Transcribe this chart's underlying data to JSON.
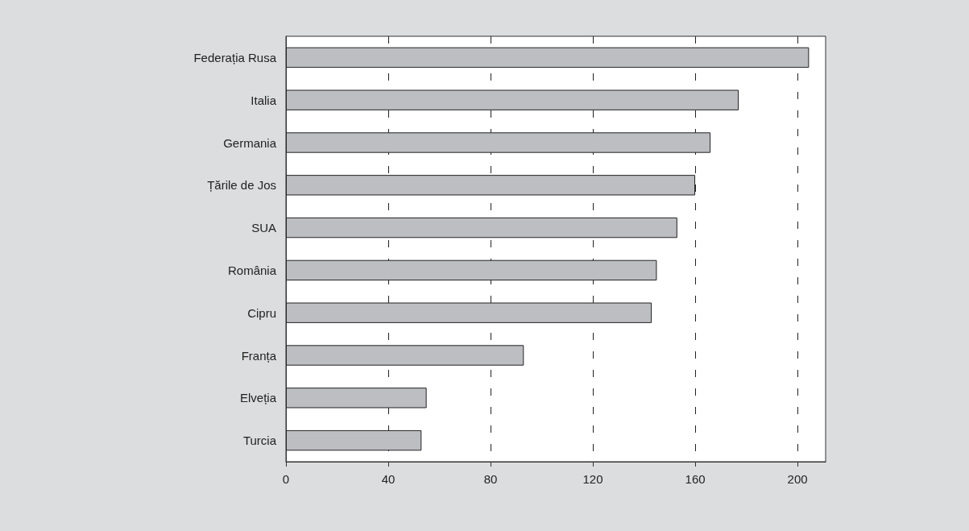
{
  "chart_data": {
    "type": "bar",
    "orientation": "horizontal",
    "categories": [
      "Federația Rusa",
      "Italia",
      "Germania",
      "Țările de Jos",
      "SUA",
      "România",
      "Cipru",
      "Franța",
      "Elveția",
      "Turcia"
    ],
    "values": [
      204.5,
      177,
      166,
      160,
      153,
      145,
      143,
      93,
      55,
      53
    ],
    "color": "#bdbec2",
    "xlim": [
      0,
      211
    ],
    "xticks": [
      0,
      40,
      80,
      120,
      160,
      200
    ],
    "grid": "x"
  }
}
